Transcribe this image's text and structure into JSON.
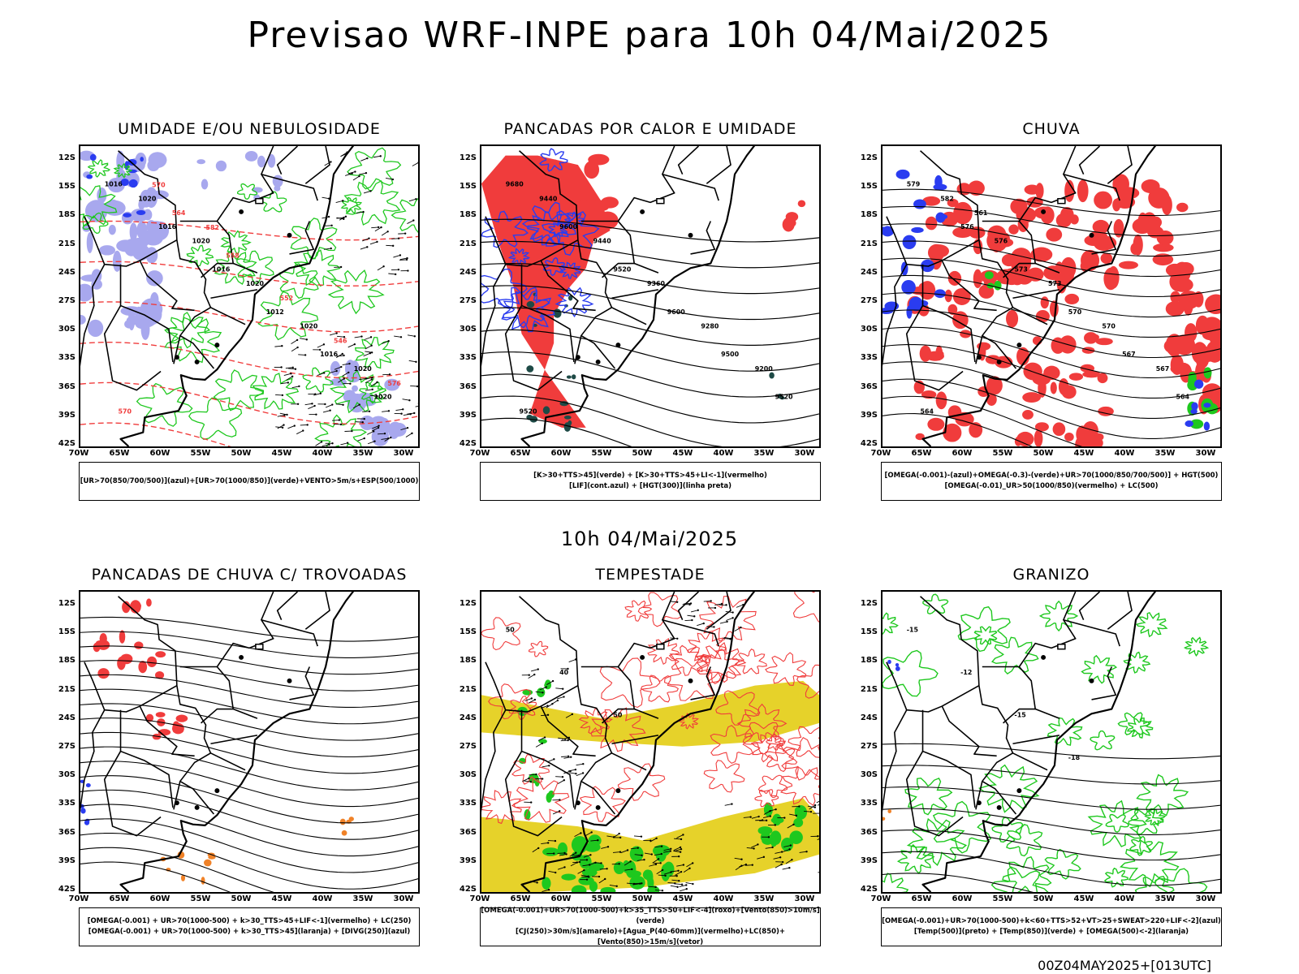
{
  "main_title": "Previsao WRF-INPE  para 10h 04/Mai/2025",
  "mid_title": "10h 04/Mai/2025",
  "footer": "00Z04MAY2025+[013UTC]",
  "latitudes": [
    "12S",
    "15S",
    "18S",
    "21S",
    "24S",
    "27S",
    "30S",
    "33S",
    "36S",
    "39S",
    "42S"
  ],
  "longitudes": [
    "70W",
    "65W",
    "60W",
    "55W",
    "50W",
    "45W",
    "40W",
    "35W",
    "30W"
  ],
  "colors": {
    "blue": "#2a3cf0",
    "lightblue": "#a8a8ee",
    "green": "#1ec81e",
    "red": "#f03c3c",
    "orange": "#f08228",
    "yellow": "#e6d22a",
    "darkgreen": "#1e4a46",
    "magenta": "#d23cd2"
  },
  "panels": [
    {
      "title": "UMIDADE E/OU NEBULOSIDADE",
      "legend": [
        "[UR>70(850/700/500)](azul)+[UR>70(1000/850)](verde)+VENTO>5m/s+ESP(500/1000)"
      ],
      "labels": [
        "1016",
        "1016",
        "1016",
        "1012",
        "1016",
        "1020",
        "1020",
        "1020",
        "1020",
        "1020",
        "1020",
        "570",
        "564",
        "558",
        "552",
        "546",
        "576",
        "570",
        "582"
      ]
    },
    {
      "title": "PANCADAS POR CALOR E UMIDADE",
      "legend": [
        "[K>30+TTS>45](verde) + [K>30+TTS>45+LI<-1](vermelho)",
        "[LIF](cont.azul) + [HGT(300)](linha preta)"
      ],
      "labels": [
        "9680",
        "9600",
        "9520",
        "9600",
        "9500",
        "9520",
        "9440",
        "9440",
        "9360",
        "9280",
        "9200",
        "9520"
      ]
    },
    {
      "title": "CHUVA",
      "legend": [
        "[OMEGA(-0.001)-(azul)+OMEGA(-0.3)-(verde)+UR>70(1000/850/700/500)] + HGT(500)",
        "[OMEGA(-0.01)_UR>50(1000/850)(vermelho) + LC(500)"
      ],
      "labels": [
        "579",
        "576",
        "573",
        "570",
        "567",
        "564",
        "582",
        "576",
        "573",
        "570",
        "567",
        "564",
        "561"
      ]
    },
    {
      "title": "PANCADAS DE CHUVA C/ TROVOADAS",
      "legend": [
        "[OMEGA(-0.001) + UR>70(1000-500) + k>30_TTS>45+LIF<-1](vermelho) + LC(250)",
        "[OMEGA(-0.001) + UR>70(1000-500) + k>30_TTS>45](laranja) + [DIVG(250)](azul)"
      ],
      "labels": []
    },
    {
      "title": "TEMPESTADE",
      "legend": [
        "[OMEGA(-0.001)+UR>70(1000-500)+k>35_TTS>50+LIF<-4](roxo)+[Vento(850)>10m/s](verde)",
        "[CJ(250)>30m/s](amarelo)+[Agua_P(40-60mm)](vermelho)+LC(850)+[Vento(850)>15m/s](vetor)"
      ],
      "labels": [
        "50",
        "40",
        "50"
      ]
    },
    {
      "title": "GRANIZO",
      "legend": [
        "[OMEGA(-0.001)+UR>70(1000-500)+k<60+TTS>52+VT>25+SWEAT>220+LIF<-2](azul)",
        "[Temp(500)](preto) + [Temp(850)](verde) + [OMEGA(500)<-2](laranja)"
      ],
      "labels": [
        "-15",
        "-12",
        "-15",
        "-18"
      ]
    }
  ]
}
